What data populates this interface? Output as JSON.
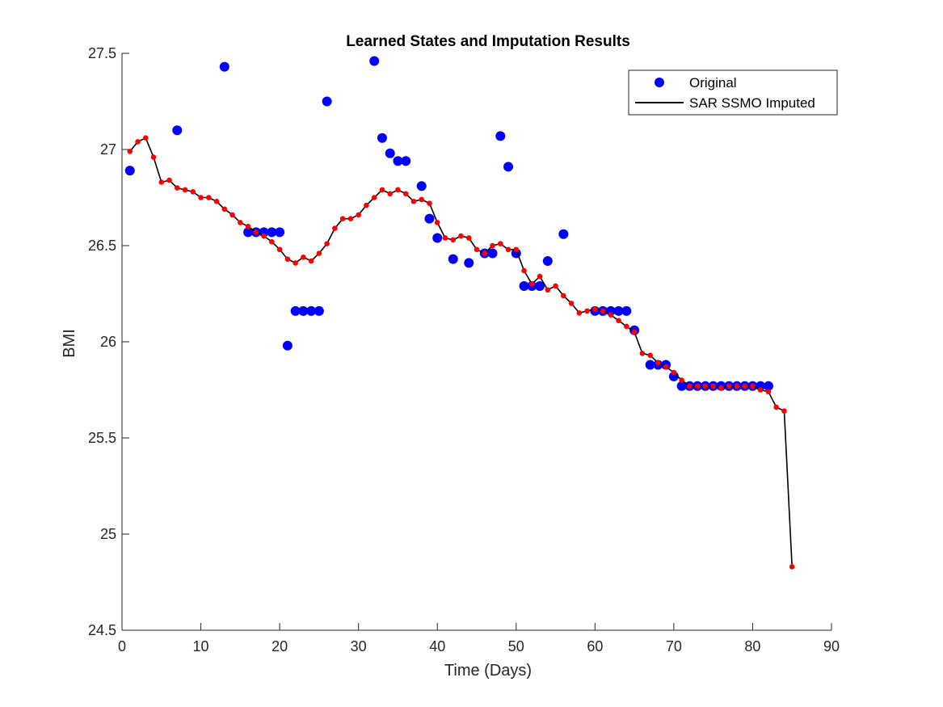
{
  "chart_data": {
    "type": "line",
    "title": "Learned States and Imputation Results",
    "xlabel": "Time (Days)",
    "ylabel": "BMI",
    "xlim": [
      0,
      90
    ],
    "ylim": [
      24.5,
      27.5
    ],
    "xticks": [
      "0",
      "10",
      "20",
      "30",
      "40",
      "50",
      "60",
      "70",
      "80",
      "90"
    ],
    "yticks": [
      "24.5",
      "25",
      "25.5",
      "26",
      "26.5",
      "27",
      "27.5"
    ],
    "legend_position": "top-right",
    "legend": [
      {
        "label": "Original",
        "marker": "circle",
        "color": "#0000ff"
      },
      {
        "label": "SAR SSMO Imputed",
        "marker": "line",
        "color": "#000000"
      }
    ],
    "grid": false,
    "series": [
      {
        "name": "Original",
        "style": "markers",
        "color": "#0000ff",
        "points": [
          [
            1,
            26.89
          ],
          [
            7,
            27.1
          ],
          [
            13,
            27.43
          ],
          [
            16,
            26.57
          ],
          [
            17,
            26.57
          ],
          [
            18,
            26.57
          ],
          [
            19,
            26.57
          ],
          [
            20,
            26.57
          ],
          [
            21,
            25.98
          ],
          [
            22,
            26.16
          ],
          [
            23,
            26.16
          ],
          [
            24,
            26.16
          ],
          [
            25,
            26.16
          ],
          [
            26,
            27.25
          ],
          [
            32,
            27.46
          ],
          [
            33,
            27.06
          ],
          [
            34,
            26.98
          ],
          [
            35,
            26.94
          ],
          [
            36,
            26.94
          ],
          [
            38,
            26.81
          ],
          [
            39,
            26.64
          ],
          [
            40,
            26.54
          ],
          [
            42,
            26.43
          ],
          [
            44,
            26.41
          ],
          [
            46,
            26.46
          ],
          [
            47,
            26.46
          ],
          [
            48,
            27.07
          ],
          [
            49,
            26.91
          ],
          [
            50,
            26.46
          ],
          [
            51,
            26.29
          ],
          [
            52,
            26.29
          ],
          [
            53,
            26.29
          ],
          [
            54,
            26.42
          ],
          [
            56,
            26.56
          ],
          [
            60,
            26.16
          ],
          [
            61,
            26.16
          ],
          [
            62,
            26.16
          ],
          [
            63,
            26.16
          ],
          [
            64,
            26.16
          ],
          [
            65,
            26.06
          ],
          [
            67,
            25.88
          ],
          [
            68,
            25.88
          ],
          [
            69,
            25.88
          ],
          [
            70,
            25.82
          ],
          [
            71,
            25.77
          ],
          [
            72,
            25.77
          ],
          [
            73,
            25.77
          ],
          [
            74,
            25.77
          ],
          [
            75,
            25.77
          ],
          [
            76,
            25.77
          ],
          [
            77,
            25.77
          ],
          [
            78,
            25.77
          ],
          [
            79,
            25.77
          ],
          [
            80,
            25.77
          ],
          [
            81,
            25.77
          ],
          [
            82,
            25.77
          ]
        ]
      },
      {
        "name": "SAR SSMO Imputed",
        "style": "line-with-markers",
        "color": "#000000",
        "marker_color": "#ff0000",
        "x": [
          1,
          2,
          3,
          4,
          5,
          6,
          7,
          8,
          9,
          10,
          11,
          12,
          13,
          14,
          15,
          16,
          17,
          18,
          19,
          20,
          21,
          22,
          23,
          24,
          25,
          26,
          27,
          28,
          29,
          30,
          31,
          32,
          33,
          34,
          35,
          36,
          37,
          38,
          39,
          40,
          41,
          42,
          43,
          44,
          45,
          46,
          47,
          48,
          49,
          50,
          51,
          52,
          53,
          54,
          55,
          56,
          57,
          58,
          59,
          60,
          61,
          62,
          63,
          64,
          65,
          66,
          67,
          68,
          69,
          70,
          71,
          72,
          73,
          74,
          75,
          76,
          77,
          78,
          79,
          80,
          81,
          82,
          83,
          84,
          85
        ],
        "y": [
          26.99,
          27.04,
          27.06,
          26.96,
          26.83,
          26.84,
          26.8,
          26.79,
          26.78,
          26.75,
          26.75,
          26.73,
          26.69,
          26.66,
          26.62,
          26.6,
          26.57,
          26.55,
          26.52,
          26.48,
          26.43,
          26.41,
          26.44,
          26.42,
          26.46,
          26.51,
          26.59,
          26.64,
          26.64,
          26.66,
          26.71,
          26.75,
          26.79,
          26.77,
          26.79,
          26.77,
          26.73,
          26.74,
          26.72,
          26.62,
          26.54,
          26.53,
          26.55,
          26.54,
          26.48,
          26.46,
          26.5,
          26.51,
          26.48,
          26.48,
          26.37,
          26.3,
          26.34,
          26.27,
          26.29,
          26.24,
          26.2,
          26.15,
          26.16,
          26.17,
          26.16,
          26.14,
          26.11,
          26.08,
          26.05,
          25.94,
          25.93,
          25.89,
          25.87,
          25.84,
          25.8,
          25.77,
          25.77,
          25.77,
          25.77,
          25.76,
          25.77,
          25.77,
          25.77,
          25.77,
          25.75,
          25.74,
          25.66,
          25.64,
          24.83
        ]
      }
    ]
  }
}
